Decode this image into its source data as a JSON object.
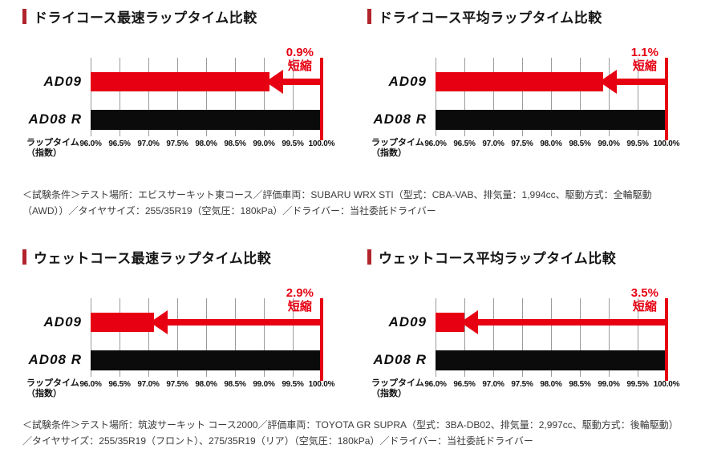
{
  "colors": {
    "accent_red": "#e60012",
    "title_marker_red": "#b2242c",
    "bar_black": "#0b0b0b",
    "grid_gray": "#9b9b9b"
  },
  "axis": {
    "label_line1": "ラップタイム",
    "label_line2": "（指数）"
  },
  "chart_data": [
    {
      "type": "bar",
      "orientation": "horizontal",
      "title": "ドライコース最速ラップタイム比較",
      "categories": [
        "AD09",
        "AD08 R"
      ],
      "values": [
        99.1,
        100.0
      ],
      "annotation_pct": "0.9%",
      "annotation_word": "短縮",
      "xlabel": "ラップタイム（指数）",
      "xlim": [
        96.0,
        100.0
      ],
      "xticks": [
        "96.0%",
        "96.5%",
        "97.0%",
        "97.5%",
        "98.0%",
        "98.5%",
        "99.0%",
        "99.5%",
        "100.0%"
      ],
      "series_colors": [
        "#e60012",
        "#0b0b0b"
      ],
      "grid": true,
      "legend": false
    },
    {
      "type": "bar",
      "orientation": "horizontal",
      "title": "ドライコース平均ラップタイム比較",
      "categories": [
        "AD09",
        "AD08 R"
      ],
      "values": [
        98.9,
        100.0
      ],
      "annotation_pct": "1.1%",
      "annotation_word": "短縮",
      "xlabel": "ラップタイム（指数）",
      "xlim": [
        96.0,
        100.0
      ],
      "xticks": [
        "96.0%",
        "96.5%",
        "97.0%",
        "97.5%",
        "98.0%",
        "98.5%",
        "99.0%",
        "99.5%",
        "100.0%"
      ],
      "series_colors": [
        "#e60012",
        "#0b0b0b"
      ],
      "grid": true,
      "legend": false
    },
    {
      "type": "bar",
      "orientation": "horizontal",
      "title": "ウェットコース最速ラップタイム比較",
      "categories": [
        "AD09",
        "AD08 R"
      ],
      "values": [
        97.1,
        100.0
      ],
      "annotation_pct": "2.9%",
      "annotation_word": "短縮",
      "xlabel": "ラップタイム（指数）",
      "xlim": [
        96.0,
        100.0
      ],
      "xticks": [
        "96.0%",
        "96.5%",
        "97.0%",
        "97.5%",
        "98.0%",
        "98.5%",
        "99.0%",
        "99.5%",
        "100.0%"
      ],
      "series_colors": [
        "#e60012",
        "#0b0b0b"
      ],
      "grid": true,
      "legend": false
    },
    {
      "type": "bar",
      "orientation": "horizontal",
      "title": "ウェットコース平均ラップタイム比較",
      "categories": [
        "AD09",
        "AD08 R"
      ],
      "values": [
        96.5,
        100.0
      ],
      "annotation_pct": "3.5%",
      "annotation_word": "短縮",
      "xlabel": "ラップタイム（指数）",
      "xlim": [
        96.0,
        100.0
      ],
      "xticks": [
        "96.0%",
        "96.5%",
        "97.0%",
        "97.5%",
        "98.0%",
        "98.5%",
        "99.0%",
        "99.5%",
        "100.0%"
      ],
      "series_colors": [
        "#e60012",
        "#0b0b0b"
      ],
      "grid": true,
      "legend": false
    }
  ],
  "captions": [
    "＜試験条件＞テスト場所：エビスサーキット東コース／評価車両：SUBARU WRX STI（型式：CBA-VAB、排気量：1,994cc、駆動方式：全輪駆動（AWD））／タイヤサイズ：255/35R19（空気圧：180kPa）／ドライバー：当社委託ドライバー",
    "＜試験条件＞テスト場所：筑波サーキット コース2000／評価車両：TOYOTA GR SUPRA（型式：3BA-DB02、排気量：2,997cc、駆動方式：後輪駆動）／タイヤサイズ：255/35R19（フロント）、275/35R19（リア）（空気圧：180kPa）／ドライバー：当社委託ドライバー"
  ]
}
